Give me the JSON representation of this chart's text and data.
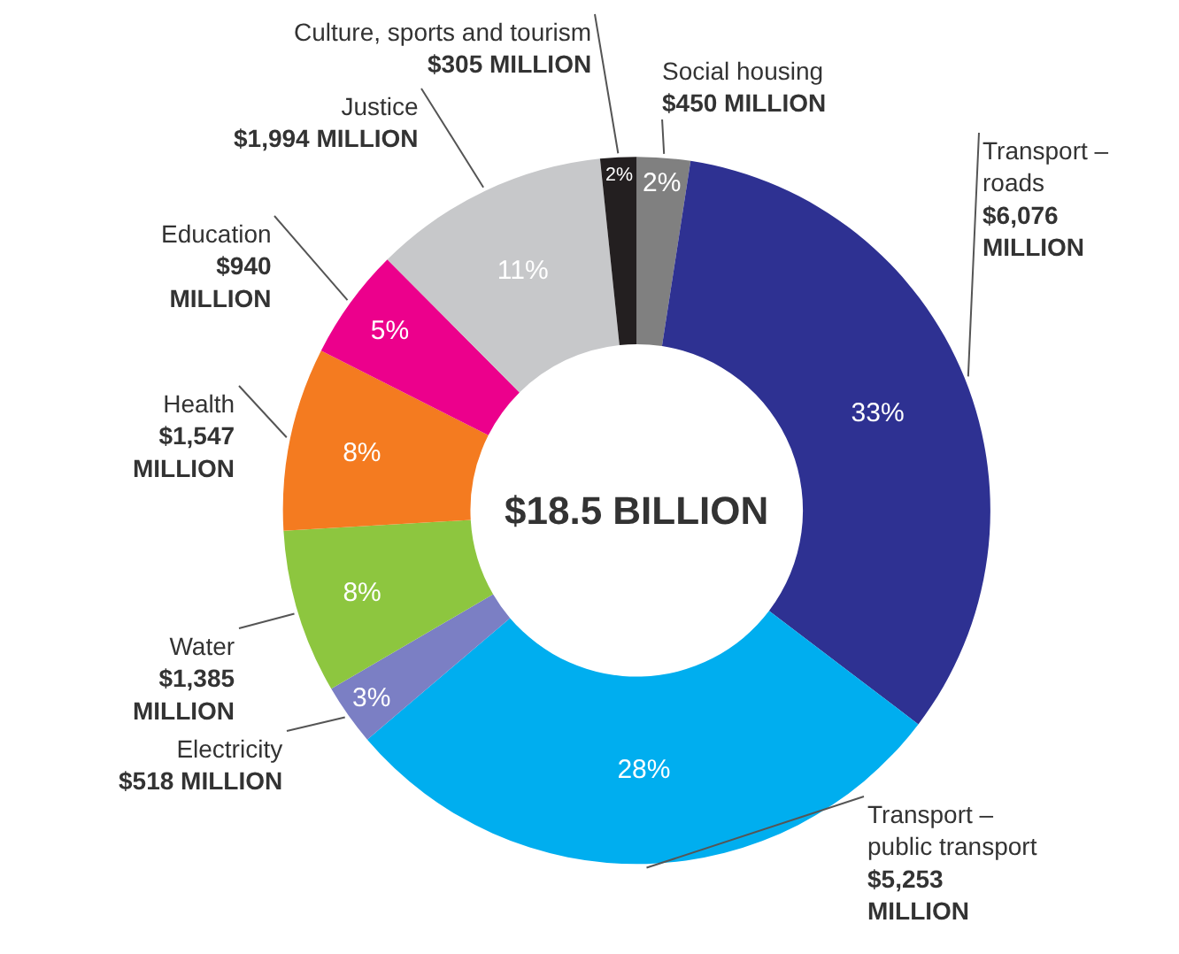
{
  "chart_data": {
    "type": "donut",
    "title": "$18.5 BILLION",
    "categories": [
      "Social housing",
      "Transport – roads",
      "Transport – public transport",
      "Electricity",
      "Water",
      "Health",
      "Education",
      "Justice",
      "Culture, sports and tourism"
    ],
    "values": [
      450,
      6076,
      5253,
      518,
      1385,
      1547,
      940,
      1994,
      305
    ],
    "colors": [
      "#808080",
      "#2e3192",
      "#00aeef",
      "#7b7fc4",
      "#8dc63f",
      "#f47b20",
      "#ec008c",
      "#c7c8ca",
      "#231f20"
    ],
    "value_labels": [
      "$450 MILLION",
      "$6,076 MILLION",
      "$5,253 MILLION",
      "$518 MILLION",
      "$1,385 MILLION",
      "$1,547 MILLION",
      "$940 MILLION",
      "$1,994 MILLION",
      "$305 MILLION"
    ],
    "annotations": [
      "2%",
      "33%",
      "28%",
      "3%",
      "8%",
      "8%",
      "5%",
      "11%",
      "2%"
    ],
    "legend": false
  }
}
